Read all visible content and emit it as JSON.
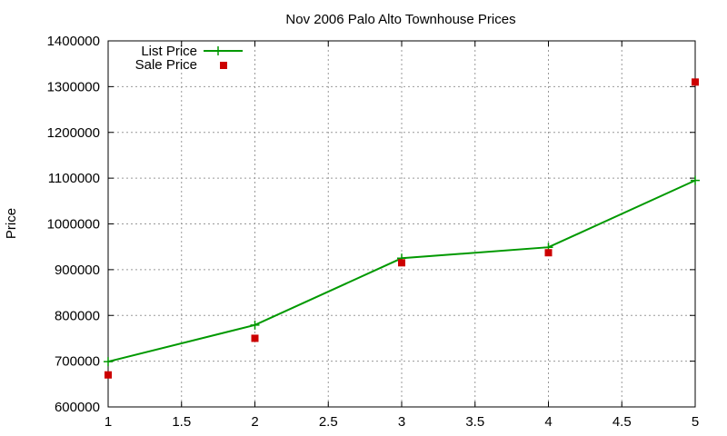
{
  "chart_data": {
    "type": "line",
    "title": "Nov 2006 Palo Alto Townhouse Prices",
    "xlabel": "",
    "ylabel": "Price",
    "xlim": [
      1,
      5
    ],
    "ylim": [
      600000,
      1400000
    ],
    "x_ticks": [
      "1",
      "1.5",
      "2",
      "2.5",
      "3",
      "3.5",
      "4",
      "4.5",
      "5"
    ],
    "y_ticks": [
      "600000",
      "700000",
      "800000",
      "900000",
      "1000000",
      "1100000",
      "1200000",
      "1300000",
      "1400000"
    ],
    "grid": true,
    "legend_position": "top-left",
    "series": [
      {
        "name": "List Price",
        "style": "line-with-plus-markers",
        "color": "#009900",
        "x": [
          1,
          2,
          3,
          4,
          5
        ],
        "y": [
          699000,
          779000,
          925000,
          949000,
          1095000
        ]
      },
      {
        "name": "Sale Price",
        "style": "square-markers",
        "color": "#cc0000",
        "x": [
          1,
          2,
          3,
          4,
          5
        ],
        "y": [
          670000,
          750000,
          915000,
          937000,
          1310000
        ]
      }
    ]
  }
}
